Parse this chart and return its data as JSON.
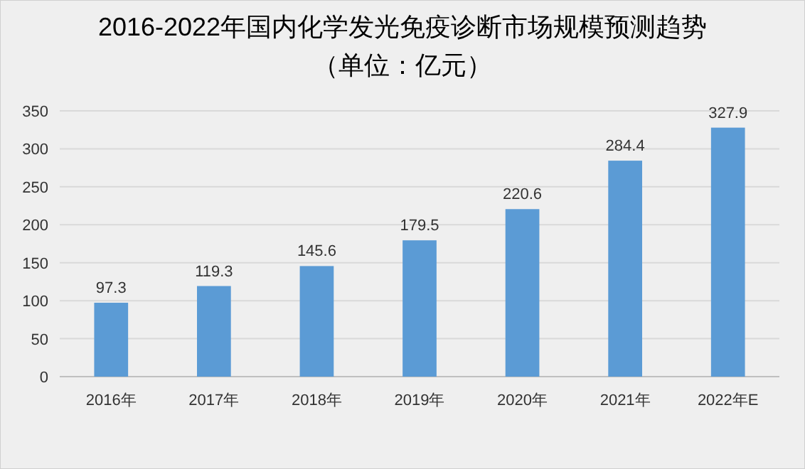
{
  "chart_data": {
    "type": "bar",
    "title": "2016-2022年国内化学发光免疫诊断市场规模预测趋势",
    "subtitle": "（单位：亿元）",
    "categories": [
      "2016年",
      "2017年",
      "2018年",
      "2019年",
      "2020年",
      "2021年",
      "2022年E"
    ],
    "values": [
      97.3,
      119.3,
      145.6,
      179.5,
      220.6,
      284.4,
      327.9
    ],
    "color": "#5b9bd5",
    "ylim": [
      0,
      350
    ],
    "yticks": [
      0,
      50,
      100,
      150,
      200,
      250,
      300,
      350
    ],
    "grid": "y",
    "data_labels": true
  }
}
